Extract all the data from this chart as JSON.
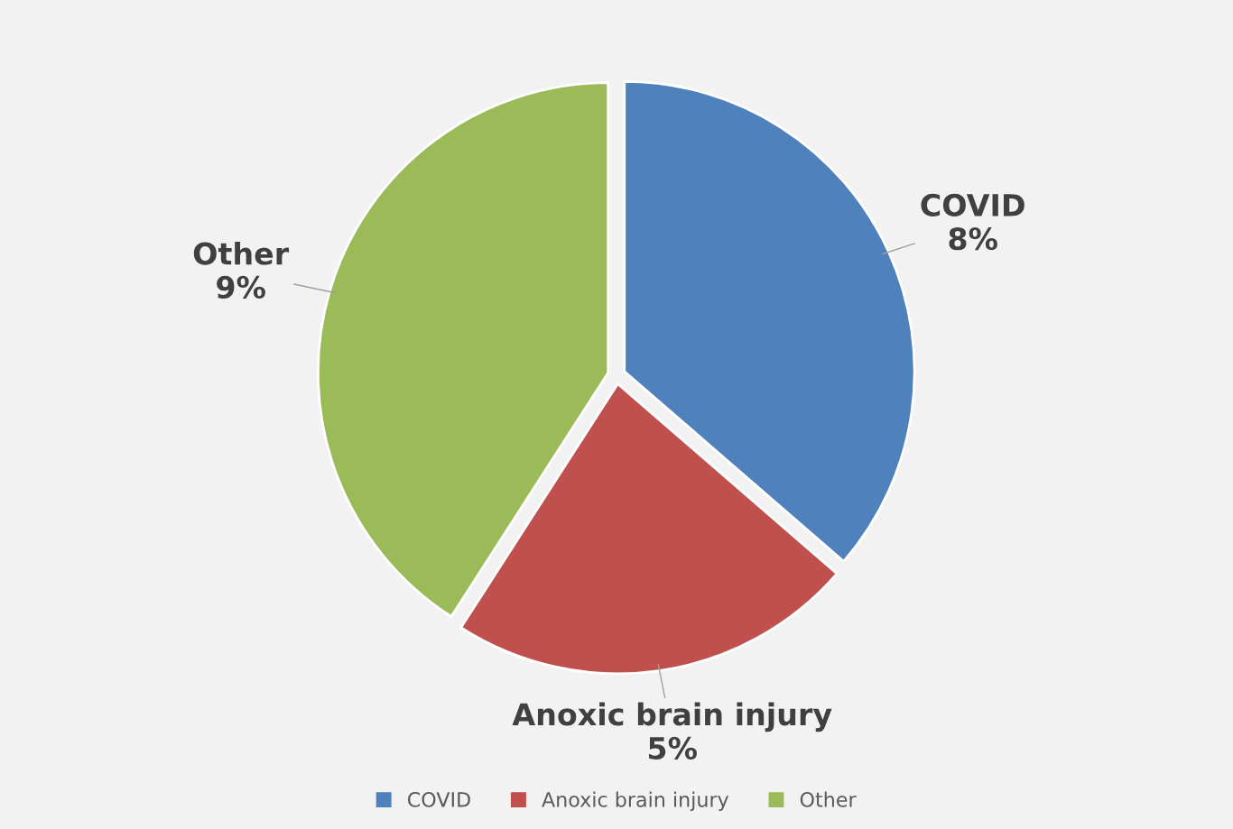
{
  "chart_data": {
    "type": "pie",
    "categories": [
      "COVID",
      "Anoxic brain injury",
      "Other"
    ],
    "values": [
      8,
      5,
      9
    ],
    "value_labels": [
      "8%",
      "5%",
      "9%"
    ],
    "colors": [
      "#4f81bd",
      "#c0504d",
      "#9bbb59"
    ],
    "legend": "bottom"
  }
}
